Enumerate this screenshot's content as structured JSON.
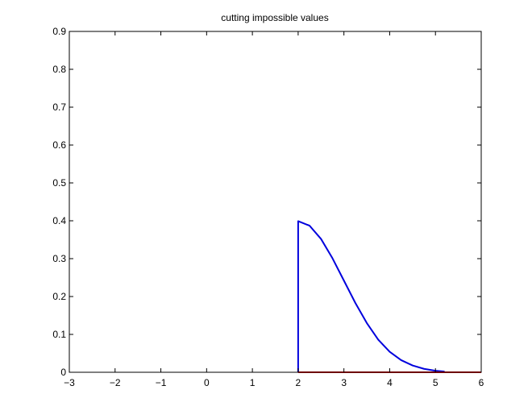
{
  "chart_data": {
    "type": "line",
    "title": "cutting impossible values",
    "xlabel": "",
    "ylabel": "",
    "xlim": [
      -3,
      6
    ],
    "ylim": [
      0,
      0.9
    ],
    "grid": false,
    "x_ticks": [
      -3,
      -2,
      -1,
      0,
      1,
      2,
      3,
      4,
      5,
      6
    ],
    "y_ticks": [
      0,
      0.1,
      0.2,
      0.3,
      0.4,
      0.5,
      0.6,
      0.7,
      0.8,
      0.9
    ],
    "x_tick_labels": [
      "−3",
      "−2",
      "−1",
      "0",
      "1",
      "2",
      "3",
      "4",
      "5",
      "6"
    ],
    "y_tick_labels": [
      "0",
      "0.1",
      "0.2",
      "0.3",
      "0.4",
      "0.5",
      "0.6",
      "0.7",
      "0.8",
      "0.9"
    ],
    "series": [
      {
        "color": "#0000ff",
        "stroke": "thin",
        "x": [
          -3,
          2
        ],
        "y": [
          0,
          0
        ]
      },
      {
        "color": "#0000dd",
        "stroke": "thick",
        "x": [
          2,
          2,
          2.25,
          2.5,
          2.75,
          3.0,
          3.25,
          3.5,
          3.75,
          4.0,
          4.25,
          4.5,
          4.75,
          5.0,
          5.2
        ],
        "y": [
          0,
          0.399,
          0.387,
          0.352,
          0.301,
          0.242,
          0.183,
          0.13,
          0.086,
          0.054,
          0.032,
          0.018,
          0.009,
          0.004,
          0.002
        ]
      },
      {
        "color": "#dd0000",
        "stroke": "thick",
        "x": [
          2,
          6
        ],
        "y": [
          0,
          0
        ]
      }
    ]
  }
}
